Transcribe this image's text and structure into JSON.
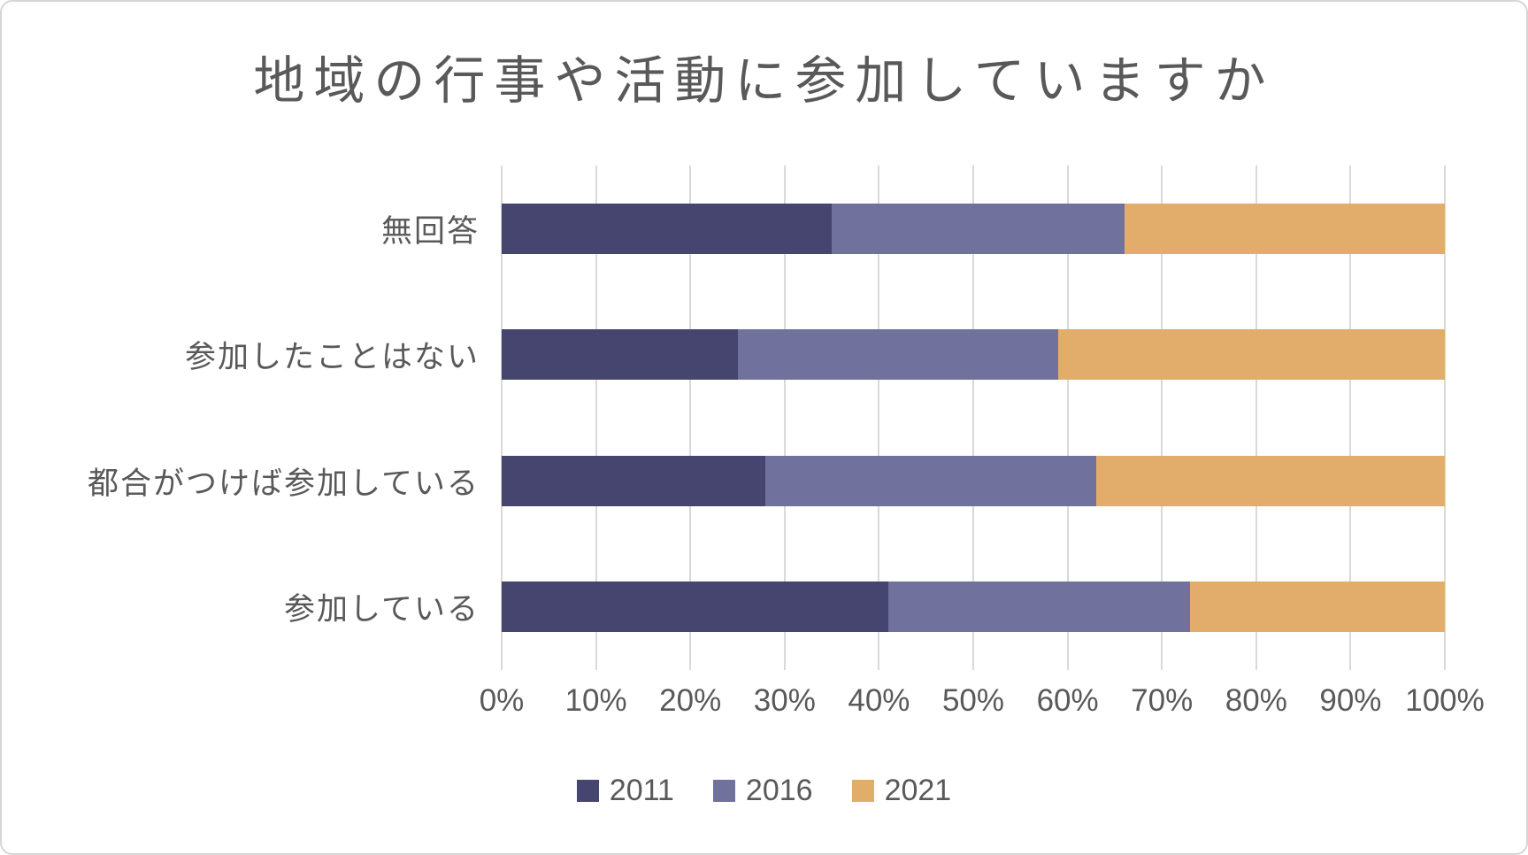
{
  "chart_data": {
    "type": "bar",
    "subtype": "100-percent-stacked-horizontal",
    "title": "地域の行事や活動に参加していますか",
    "categories": [
      "無回答",
      "参加したことはない",
      "都合がつけば参加している",
      "参加している"
    ],
    "series": [
      {
        "name": "2011",
        "color": "#45456F",
        "values": [
          35,
          25,
          28,
          41
        ]
      },
      {
        "name": "2016",
        "color": "#71719E",
        "values": [
          31,
          34,
          35,
          32
        ]
      },
      {
        "name": "2021",
        "color": "#E2AD6B",
        "values": [
          34,
          41,
          37,
          27
        ]
      }
    ],
    "values_unit": "percent",
    "x_axis": {
      "min": 0,
      "max": 100,
      "step": 10,
      "tick_labels": [
        "0%",
        "10%",
        "20%",
        "30%",
        "40%",
        "50%",
        "60%",
        "70%",
        "80%",
        "90%",
        "100%"
      ]
    },
    "legend": {
      "position": "bottom",
      "entries": [
        "2011",
        "2016",
        "2021"
      ]
    },
    "grid": true,
    "colors": {
      "text": "#595959",
      "gridline": "#D9D9D9",
      "background": "#FFFFFF",
      "frame_border": "#D6D6D6"
    }
  }
}
